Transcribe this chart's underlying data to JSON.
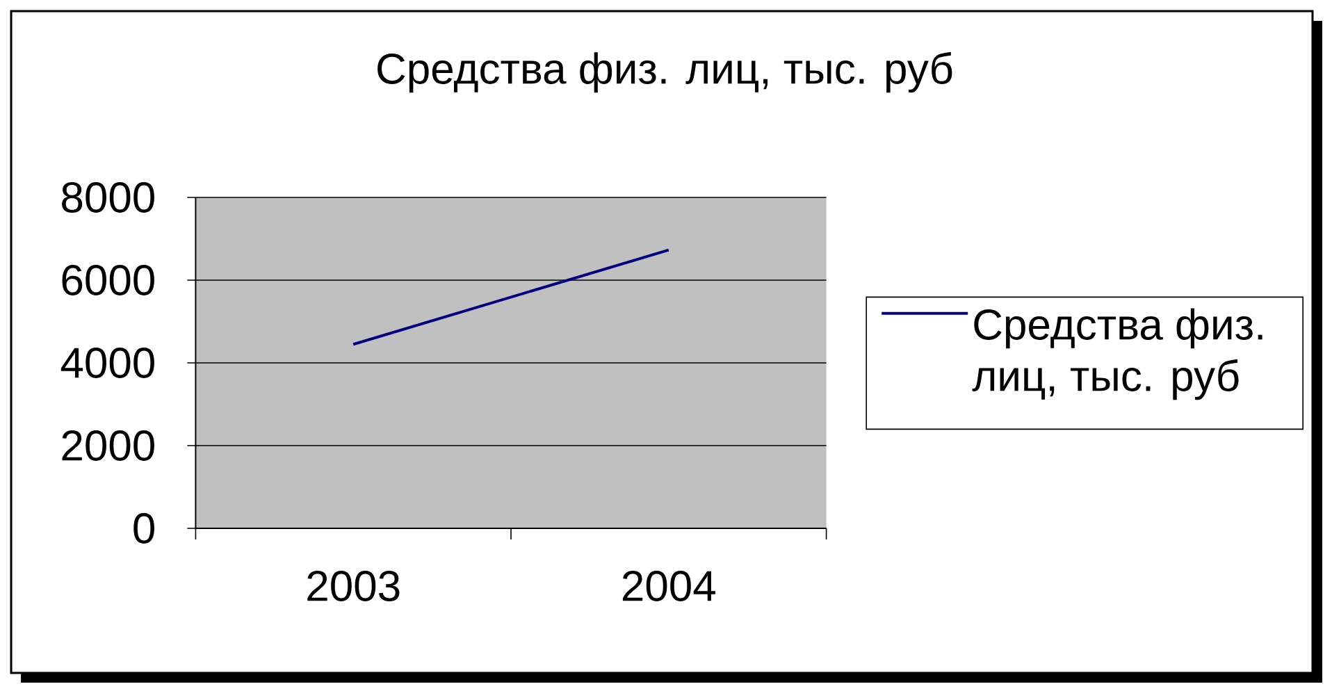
{
  "chart_data": {
    "type": "line",
    "title": "Средства физ. лиц, тыс. руб",
    "categories": [
      "2003",
      "2004"
    ],
    "series": [
      {
        "name": "Средства физ. лиц, тыс. руб",
        "color": "#000080",
        "values": [
          4450,
          6730
        ]
      }
    ],
    "ylim": [
      0,
      8000
    ],
    "yticks": [
      0,
      2000,
      4000,
      6000,
      8000
    ],
    "grid": "y",
    "legend": "right",
    "marker": "none",
    "line_style": "solid"
  }
}
